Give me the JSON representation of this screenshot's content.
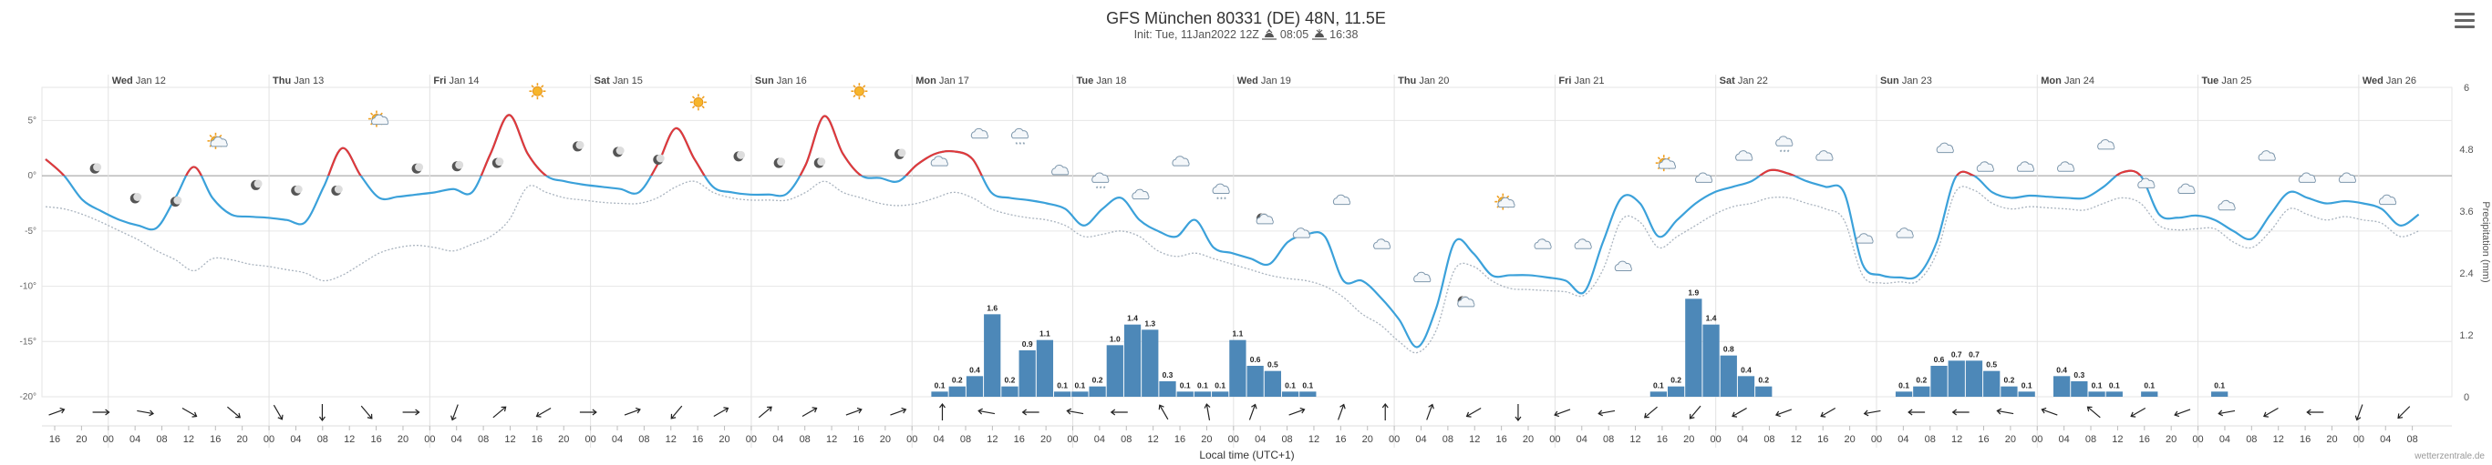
{
  "header": {
    "title": "GFS München 80331 (DE) 48N, 11.5E",
    "init": "Init: Tue, 11Jan2022 12Z",
    "sunrise": "08:05",
    "sunset": "16:38"
  },
  "credit": "wetterzentrale.de",
  "chart_data": {
    "type": "line",
    "title": "GFS München 80331 (DE) 48N, 11.5E",
    "xlabel": "Local time (UTC+1)",
    "ylabel_right": "Precipitation (mm)",
    "x_start_hour": 16,
    "step_hours": 4,
    "n_steps": 89,
    "y_ticks": [
      "5°",
      "0°",
      "-5°",
      "-10°",
      "-15°",
      "-20°"
    ],
    "y_tick_values": [
      5,
      0,
      -5,
      -10,
      -15,
      -20
    ],
    "ylim": [
      -20,
      8
    ],
    "y2_ticks": [
      "0",
      "1.2",
      "2.4",
      "3.6",
      "4.8",
      "6"
    ],
    "y2_tick_values": [
      0,
      1.2,
      2.4,
      3.6,
      4.8,
      6
    ],
    "y2lim": [
      0,
      6
    ],
    "day_labels": [
      {
        "day": "Wed",
        "date": "Jan 12"
      },
      {
        "day": "Thu",
        "date": "Jan 13"
      },
      {
        "day": "Fri",
        "date": "Jan 14"
      },
      {
        "day": "Sat",
        "date": "Jan 15"
      },
      {
        "day": "Sun",
        "date": "Jan 16"
      },
      {
        "day": "Mon",
        "date": "Jan 17"
      },
      {
        "day": "Tue",
        "date": "Jan 18"
      },
      {
        "day": "Wed",
        "date": "Jan 19"
      },
      {
        "day": "Thu",
        "date": "Jan 20"
      },
      {
        "day": "Fri",
        "date": "Jan 21"
      },
      {
        "day": "Sat",
        "date": "Jan 22"
      },
      {
        "day": "Sun",
        "date": "Jan 23"
      },
      {
        "day": "Mon",
        "date": "Jan 24"
      },
      {
        "day": "Tue",
        "date": "Jan 25"
      },
      {
        "day": "Wed",
        "date": "Jan 26"
      }
    ],
    "hour_labels": [
      "16",
      "20",
      "00",
      "04",
      "08",
      "12",
      "16",
      "20",
      "00",
      "04",
      "08",
      "12",
      "16",
      "20",
      "00",
      "04",
      "08",
      "12",
      "16",
      "20",
      "00",
      "04",
      "08",
      "12",
      "16",
      "20",
      "00",
      "04",
      "08",
      "12",
      "16",
      "20",
      "00",
      "04",
      "08",
      "12",
      "16",
      "20",
      "00",
      "04",
      "08",
      "12",
      "16",
      "20",
      "00",
      "04",
      "08",
      "12",
      "16",
      "20",
      "00",
      "04",
      "08",
      "12",
      "16",
      "20",
      "00",
      "04",
      "08",
      "12",
      "16",
      "20",
      "00",
      "04",
      "08",
      "12",
      "16",
      "20",
      "00",
      "04",
      "08",
      "12",
      "16",
      "20",
      "00",
      "04",
      "08",
      "12",
      "16",
      "20",
      "00",
      "04",
      "08",
      "12",
      "16",
      "20",
      "00",
      "04",
      "08"
    ],
    "series": [
      {
        "name": "Temperature",
        "color": "#3ba1da",
        "color_above_zero": "#e0393a",
        "values": [
          1.5,
          0,
          -2.2,
          -3.2,
          -4,
          -4.5,
          -4.7,
          -2,
          0.8,
          -2,
          -3.5,
          -3.7,
          -3.8,
          -4,
          -4.2,
          -1,
          2.5,
          0,
          -2,
          -1.9,
          -1.7,
          -1.5,
          -1.2,
          -1.5,
          2,
          5.5,
          2,
          0,
          -0.5,
          -0.8,
          -1,
          -1.2,
          -1.5,
          1,
          4.3,
          1.5,
          -1,
          -1.5,
          -1.7,
          -1.7,
          -1.6,
          1,
          5.4,
          2,
          0,
          -0.2,
          -0.5,
          1,
          2,
          2.2,
          1.5,
          -1.5,
          -2,
          -2.2,
          -2.5,
          -3,
          -4.5,
          -3,
          -2,
          -4,
          -5,
          -5.5,
          -4,
          -6.5,
          -7,
          -7.5,
          -8,
          -6,
          -5.3,
          -5.5,
          -9.5,
          -9.5,
          -11,
          -13,
          -15.5,
          -12,
          -6,
          -7,
          -9,
          -9,
          -9,
          -9.2,
          -9.5,
          -10.5,
          -6,
          -2,
          -2.5,
          -5.5,
          -4,
          -2.5,
          -1.5,
          -1,
          -0.5,
          0.5,
          0.2,
          -0.5,
          -1,
          -1.5,
          -8,
          -9,
          -9.2,
          -9,
          -6,
          -0.2,
          0,
          -1.5,
          -2,
          -1.8,
          -1.9,
          -2,
          -2,
          -1,
          0.3,
          0,
          -3.5,
          -3.8,
          -3.6,
          -4,
          -5,
          -5.7,
          -3.5,
          -1.5,
          -2,
          -2.5,
          -2.3,
          -2.5,
          -3,
          -4.5,
          -3.5
        ]
      },
      {
        "name": "Dew point",
        "color": "#aab4bf",
        "dashed": true,
        "values": [
          -2.8,
          -3,
          -3.5,
          -4.2,
          -5,
          -5.8,
          -6.8,
          -7.6,
          -8.6,
          -7.5,
          -7.6,
          -8,
          -8.2,
          -8.5,
          -8.8,
          -9.5,
          -9,
          -8,
          -7,
          -6.5,
          -6.3,
          -6.5,
          -6.8,
          -6.2,
          -5.5,
          -4,
          -1,
          -1.5,
          -2,
          -2.2,
          -2.4,
          -2.5,
          -2.5,
          -2,
          -1,
          -0.5,
          -1.5,
          -2,
          -2.2,
          -2.2,
          -2.2,
          -1.5,
          -0.5,
          -1.5,
          -2,
          -2.5,
          -2.7,
          -2.5,
          -2,
          -1.5,
          -2,
          -3,
          -3.5,
          -3.8,
          -4,
          -4.5,
          -5.5,
          -5.3,
          -5,
          -5.5,
          -6.8,
          -7.3,
          -7,
          -7.5,
          -8,
          -8.5,
          -9,
          -9.3,
          -9.5,
          -10,
          -11,
          -12.5,
          -13.5,
          -15,
          -16,
          -14,
          -8.5,
          -8.2,
          -9.5,
          -10.2,
          -10.3,
          -10.4,
          -10.5,
          -10.8,
          -8.5,
          -4,
          -4.2,
          -6.5,
          -5.5,
          -4.5,
          -3.5,
          -2.8,
          -2.5,
          -2,
          -2,
          -2.5,
          -3,
          -4,
          -9,
          -9.7,
          -9.6,
          -9.5,
          -7,
          -1.5,
          -1.3,
          -2.5,
          -3,
          -2.8,
          -2.9,
          -3,
          -3.1,
          -2.5,
          -2,
          -2.5,
          -4.5,
          -4.9,
          -4.8,
          -4.8,
          -6,
          -6.5,
          -5,
          -3,
          -3.5,
          -4,
          -3.7,
          -4,
          -4.3,
          -5.5,
          -5
        ]
      }
    ],
    "precip_bars": [
      {
        "hour_index": 50,
        "value": 0.1
      },
      {
        "hour_index": 51,
        "value": 0.2
      },
      {
        "hour_index": 52,
        "value": 0.4
      },
      {
        "hour_index": 53,
        "value": 1.6
      },
      {
        "hour_index": 54,
        "value": 0.2
      },
      {
        "hour_index": 55,
        "value": 0.9
      },
      {
        "hour_index": 56,
        "value": 1.1
      },
      {
        "hour_index": 57,
        "value": 0.1
      },
      {
        "hour_index": 58,
        "value": 0.1
      },
      {
        "hour_index": 59,
        "value": 0.2
      },
      {
        "hour_index": 60,
        "value": 1.0
      },
      {
        "hour_index": 61,
        "value": 1.4
      },
      {
        "hour_index": 62,
        "value": 1.3
      },
      {
        "hour_index": 63,
        "value": 0.3
      },
      {
        "hour_index": 64,
        "value": 0.1
      },
      {
        "hour_index": 65,
        "value": 0.1
      },
      {
        "hour_index": 66,
        "value": 0.1
      },
      {
        "hour_index": 67,
        "value": 1.1
      },
      {
        "hour_index": 68,
        "value": 0.6
      },
      {
        "hour_index": 69,
        "value": 0.5
      },
      {
        "hour_index": 70,
        "value": 0.1
      },
      {
        "hour_index": 71,
        "value": 0.1
      },
      {
        "hour_index": 91,
        "value": 0.1
      },
      {
        "hour_index": 92,
        "value": 0.2
      },
      {
        "hour_index": 93,
        "value": 1.9
      },
      {
        "hour_index": 94,
        "value": 1.4
      },
      {
        "hour_index": 95,
        "value": 0.8
      },
      {
        "hour_index": 96,
        "value": 0.4
      },
      {
        "hour_index": 97,
        "value": 0.2
      },
      {
        "hour_index": 105,
        "value": 0.1
      },
      {
        "hour_index": 106,
        "value": 0.2
      },
      {
        "hour_index": 107,
        "value": 0.6
      },
      {
        "hour_index": 108,
        "value": 0.7
      },
      {
        "hour_index": 109,
        "value": 0.7
      },
      {
        "hour_index": 110,
        "value": 0.5
      },
      {
        "hour_index": 111,
        "value": 0.2
      },
      {
        "hour_index": 112,
        "value": 0.1
      },
      {
        "hour_index": 114,
        "value": 0.4
      },
      {
        "hour_index": 115,
        "value": 0.3
      },
      {
        "hour_index": 116,
        "value": 0.1
      },
      {
        "hour_index": 117,
        "value": 0.1
      },
      {
        "hour_index": 119,
        "value": 0.1
      },
      {
        "hour_index": 123,
        "value": 0.1
      }
    ],
    "weather_icons": [
      {
        "step": 1,
        "type": "moon",
        "temp": -0.5
      },
      {
        "step": 2,
        "type": "moon",
        "temp": -3.2
      },
      {
        "step": 3,
        "type": "moon",
        "temp": -3.5
      },
      {
        "step": 4,
        "type": "sun-cloud",
        "temp": 2
      },
      {
        "step": 5,
        "type": "moon",
        "temp": -2
      },
      {
        "step": 6,
        "type": "moon",
        "temp": -2.5
      },
      {
        "step": 7,
        "type": "moon",
        "temp": -2.5
      },
      {
        "step": 8,
        "type": "sun-cloud",
        "temp": 4
      },
      {
        "step": 9,
        "type": "moon",
        "temp": -0.5
      },
      {
        "step": 10,
        "type": "moon",
        "temp": -0.3
      },
      {
        "step": 11,
        "type": "moon",
        "temp": 0
      },
      {
        "step": 12,
        "type": "sun",
        "temp": 6.5
      },
      {
        "step": 13,
        "type": "moon",
        "temp": 1.5
      },
      {
        "step": 14,
        "type": "moon",
        "temp": 1
      },
      {
        "step": 15,
        "type": "moon",
        "temp": 0.3
      },
      {
        "step": 16,
        "type": "sun",
        "temp": 5.5
      },
      {
        "step": 17,
        "type": "moon",
        "temp": 0.6
      },
      {
        "step": 18,
        "type": "moon",
        "temp": 0
      },
      {
        "step": 19,
        "type": "moon",
        "temp": 0
      },
      {
        "step": 20,
        "type": "sun",
        "temp": 6.5
      },
      {
        "step": 21,
        "type": "moon",
        "temp": 0.8
      },
      {
        "step": 22,
        "type": "cloud",
        "temp": 0
      },
      {
        "step": 23,
        "type": "cloud",
        "temp": 2.5
      },
      {
        "step": 24,
        "type": "cloud-snow",
        "temp": 2.5
      },
      {
        "step": 25,
        "type": "cloud",
        "temp": -0.8
      },
      {
        "step": 26,
        "type": "cloud-snow",
        "temp": -1.5
      },
      {
        "step": 27,
        "type": "cloud",
        "temp": -3
      },
      {
        "step": 28,
        "type": "cloud",
        "temp": 0
      },
      {
        "step": 29,
        "type": "cloud-snow",
        "temp": -2.5
      },
      {
        "step": 30,
        "type": "moon-cloud",
        "temp": -5
      },
      {
        "step": 31,
        "type": "cloud",
        "temp": -6.5
      },
      {
        "step": 32,
        "type": "cloud",
        "temp": -3.5
      },
      {
        "step": 33,
        "type": "cloud",
        "temp": -7.5
      },
      {
        "step": 34,
        "type": "cloud",
        "temp": -10.5
      },
      {
        "step": 35,
        "type": "moon-cloud",
        "temp": -12.5
      },
      {
        "step": 36,
        "type": "sun-cloud",
        "temp": -3.5
      },
      {
        "step": 37,
        "type": "cloud",
        "temp": -7.5
      },
      {
        "step": 38,
        "type": "cloud",
        "temp": -7.5
      },
      {
        "step": 39,
        "type": "cloud",
        "temp": -9.5
      },
      {
        "step": 40,
        "type": "sun-cloud",
        "temp": 0
      },
      {
        "step": 41,
        "type": "cloud",
        "temp": -1.5
      },
      {
        "step": 42,
        "type": "cloud",
        "temp": 0.5
      },
      {
        "step": 43,
        "type": "cloud-snow",
        "temp": 1.8
      },
      {
        "step": 44,
        "type": "cloud",
        "temp": 0.5
      },
      {
        "step": 45,
        "type": "cloud",
        "temp": -7
      },
      {
        "step": 46,
        "type": "cloud",
        "temp": -6.5
      },
      {
        "step": 47,
        "type": "cloud",
        "temp": 1.2
      },
      {
        "step": 48,
        "type": "cloud",
        "temp": -0.5
      },
      {
        "step": 49,
        "type": "cloud",
        "temp": -0.5
      },
      {
        "step": 50,
        "type": "cloud",
        "temp": -0.5
      },
      {
        "step": 51,
        "type": "cloud",
        "temp": 1.5
      },
      {
        "step": 52,
        "type": "cloud",
        "temp": -2
      },
      {
        "step": 53,
        "type": "cloud",
        "temp": -2.5
      },
      {
        "step": 54,
        "type": "cloud",
        "temp": -4
      },
      {
        "step": 55,
        "type": "cloud",
        "temp": 0.5
      },
      {
        "step": 56,
        "type": "cloud",
        "temp": -1.5
      },
      {
        "step": 57,
        "type": "cloud",
        "temp": -1.5
      },
      {
        "step": 58,
        "type": "cloud",
        "temp": -3.5
      }
    ],
    "wind": [
      {
        "step": 0,
        "dir": 250
      },
      {
        "step": 1,
        "dir": 270
      },
      {
        "step": 2,
        "dir": 280
      },
      {
        "step": 3,
        "dir": 300
      },
      {
        "step": 4,
        "dir": 310
      },
      {
        "step": 5,
        "dir": 330
      },
      {
        "step": 6,
        "dir": 0
      },
      {
        "step": 7,
        "dir": 320
      },
      {
        "step": 8,
        "dir": 270
      },
      {
        "step": 9,
        "dir": 20
      },
      {
        "step": 10,
        "dir": 230
      },
      {
        "step": 11,
        "dir": 60
      },
      {
        "step": 12,
        "dir": 270
      },
      {
        "step": 13,
        "dir": 250
      },
      {
        "step": 14,
        "dir": 40
      },
      {
        "step": 15,
        "dir": 240
      },
      {
        "step": 16,
        "dir": 230
      },
      {
        "step": 17,
        "dir": 240
      },
      {
        "step": 18,
        "dir": 250
      },
      {
        "step": 19,
        "dir": 250
      },
      {
        "step": 20,
        "dir": 180
      },
      {
        "step": 21,
        "dir": 100
      },
      {
        "step": 22,
        "dir": 90
      },
      {
        "step": 23,
        "dir": 100
      },
      {
        "step": 24,
        "dir": 90
      },
      {
        "step": 25,
        "dir": 150
      },
      {
        "step": 26,
        "dir": 170
      },
      {
        "step": 27,
        "dir": 200
      },
      {
        "step": 28,
        "dir": 250
      },
      {
        "step": 29,
        "dir": 200
      },
      {
        "step": 30,
        "dir": 180
      },
      {
        "step": 31,
        "dir": 200
      },
      {
        "step": 32,
        "dir": 60
      },
      {
        "step": 33,
        "dir": 0
      },
      {
        "step": 34,
        "dir": 70
      },
      {
        "step": 35,
        "dir": 80
      },
      {
        "step": 36,
        "dir": 50
      },
      {
        "step": 37,
        "dir": 40
      },
      {
        "step": 38,
        "dir": 60
      },
      {
        "step": 39,
        "dir": 70
      },
      {
        "step": 40,
        "dir": 60
      },
      {
        "step": 41,
        "dir": 80
      },
      {
        "step": 42,
        "dir": 90
      },
      {
        "step": 43,
        "dir": 90
      },
      {
        "step": 44,
        "dir": 100
      },
      {
        "step": 45,
        "dir": 110
      },
      {
        "step": 46,
        "dir": 130
      },
      {
        "step": 47,
        "dir": 60
      },
      {
        "step": 48,
        "dir": 70
      },
      {
        "step": 49,
        "dir": 80
      },
      {
        "step": 50,
        "dir": 60
      },
      {
        "step": 51,
        "dir": 90
      },
      {
        "step": 52,
        "dir": 20
      },
      {
        "step": 53,
        "dir": 45
      }
    ]
  }
}
